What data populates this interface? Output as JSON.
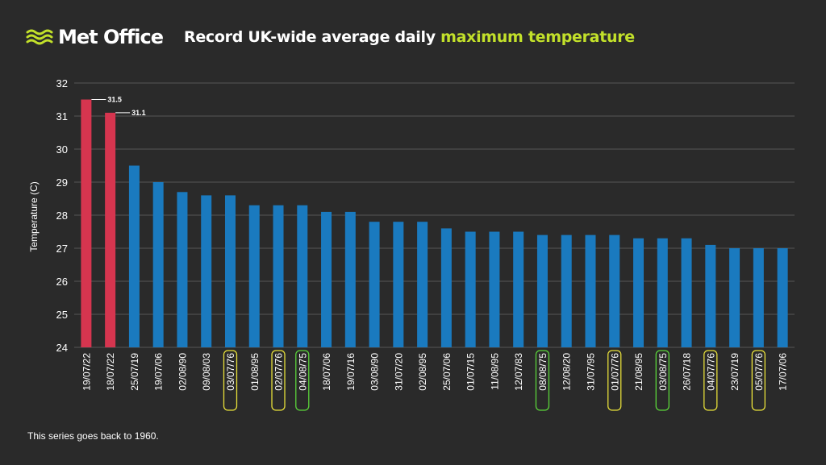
{
  "header": {
    "logo_text": "Met Office",
    "title_plain": "Record UK-wide average daily ",
    "title_highlight": "maximum temperature"
  },
  "footnote": "This series goes back to 1960.",
  "colors": {
    "background": "#2a2a2a",
    "recent_bar": "#d6354f",
    "bar": "#1a7abf",
    "highlight_green": "#c2e02a",
    "box_yellow": "#e8e03a",
    "box_green": "#5ad33a",
    "grid": "#555555"
  },
  "chart_data": {
    "type": "bar",
    "ylabel": "Temperature (C)",
    "ylim": [
      24,
      32
    ],
    "yticks": [
      24,
      25,
      26,
      27,
      28,
      29,
      30,
      31,
      32
    ],
    "grid": true,
    "categories": [
      "19/07/22",
      "18/07/22",
      "25/07/19",
      "19/07/06",
      "02/08/90",
      "09/08/03",
      "03/07/76",
      "01/08/95",
      "02/07/76",
      "04/08/75",
      "18/07/06",
      "19/07/16",
      "03/08/90",
      "31/07/20",
      "02/08/95",
      "25/07/06",
      "01/07/15",
      "11/08/95",
      "12/07/83",
      "08/08/75",
      "12/08/20",
      "31/07/95",
      "01/07/76",
      "21/08/95",
      "03/08/75",
      "26/07/18",
      "04/07/76",
      "23/07/19",
      "05/07/76",
      "17/07/06"
    ],
    "values": [
      31.5,
      31.1,
      29.5,
      29.0,
      28.7,
      28.6,
      28.6,
      28.3,
      28.3,
      28.3,
      28.1,
      28.1,
      27.8,
      27.8,
      27.8,
      27.6,
      27.5,
      27.5,
      27.5,
      27.4,
      27.4,
      27.4,
      27.4,
      27.3,
      27.3,
      27.3,
      27.1,
      27.0,
      27.0,
      27.0
    ],
    "highlight_recent": [
      0,
      1
    ],
    "boxed_1976": [
      6,
      8,
      22,
      26,
      28
    ],
    "boxed_1975": [
      9,
      19,
      24
    ],
    "data_labels": [
      {
        "index": 0,
        "text": "31.5"
      },
      {
        "index": 1,
        "text": "31.1"
      }
    ]
  }
}
